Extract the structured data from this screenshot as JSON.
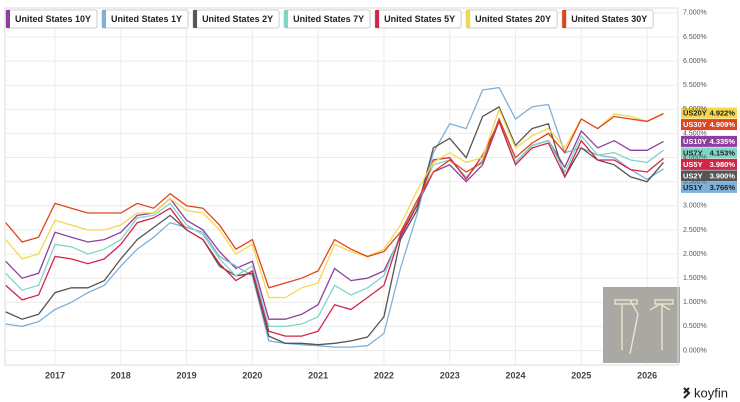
{
  "chart_data": {
    "type": "line",
    "brand": "koyfin",
    "x": [
      2016.25,
      2016.5,
      2016.75,
      2017,
      2017.25,
      2017.5,
      2017.75,
      2018,
      2018.25,
      2018.5,
      2018.75,
      2019,
      2019.25,
      2019.5,
      2019.75,
      2020,
      2020.25,
      2020.5,
      2020.75,
      2021,
      2021.25,
      2021.5,
      2021.75,
      2022,
      2022.25,
      2022.5,
      2022.75,
      2023,
      2023.25,
      2023.5,
      2023.75,
      2024,
      2024.25,
      2024.5,
      2024.75,
      2025,
      2025.25,
      2025.5,
      2025.75,
      2026,
      2026.25
    ],
    "xlim": [
      2016.24,
      2026.47
    ],
    "xticks": [
      2017,
      2018,
      2019,
      2020,
      2021,
      2022,
      2023,
      2024,
      2025,
      2026
    ],
    "ylim": [
      -0.3,
      7.1
    ],
    "yticks": [
      {
        "value": 0,
        "label": "0.000%"
      },
      {
        "value": 0.5,
        "label": "0.500%"
      },
      {
        "value": 1,
        "label": "1.000%"
      },
      {
        "value": 1.5,
        "label": "1.500%"
      },
      {
        "value": 2,
        "label": "2.000%"
      },
      {
        "value": 2.5,
        "label": "2.500%"
      },
      {
        "value": 3,
        "label": "3.000%"
      },
      {
        "value": 3.5,
        "label": "3.500%"
      },
      {
        "value": 4,
        "label": "4.000%"
      },
      {
        "value": 4.5,
        "label": "4.500%"
      },
      {
        "value": 5,
        "label": "5.000%"
      },
      {
        "value": 5.5,
        "label": "5.500%"
      },
      {
        "value": 6,
        "label": "6.000%"
      },
      {
        "value": 6.5,
        "label": "6.500%"
      },
      {
        "value": 7,
        "label": "7.000%"
      }
    ],
    "grid": true,
    "series": [
      {
        "name": "United States 10Y",
        "color": "#8e3f9e",
        "tag": "US10Y",
        "last": {
          "value": 4.335,
          "label": "4.335%"
        },
        "values": [
          1.85,
          1.5,
          1.6,
          2.45,
          2.35,
          2.25,
          2.3,
          2.45,
          2.8,
          2.85,
          3.15,
          2.7,
          2.5,
          2.05,
          1.7,
          1.85,
          0.65,
          0.65,
          0.75,
          0.95,
          1.7,
          1.45,
          1.5,
          1.65,
          2.35,
          3.0,
          3.7,
          3.85,
          3.5,
          3.85,
          4.75,
          3.9,
          4.25,
          4.35,
          3.8,
          4.55,
          4.2,
          4.35,
          4.15,
          4.15,
          4.335
        ]
      },
      {
        "name": "United States 1Y",
        "color": "#7fb0d8",
        "tag": "US1Y",
        "last": {
          "value": 3.766,
          "label": "3.766%"
        },
        "values": [
          0.55,
          0.5,
          0.6,
          0.85,
          1.0,
          1.2,
          1.35,
          1.75,
          2.1,
          2.35,
          2.65,
          2.55,
          2.45,
          1.95,
          1.75,
          1.55,
          0.2,
          0.15,
          0.12,
          0.1,
          0.07,
          0.07,
          0.1,
          0.35,
          1.7,
          2.8,
          4.1,
          4.7,
          4.6,
          5.4,
          5.45,
          4.8,
          5.05,
          5.1,
          4.1,
          4.2,
          4.05,
          4.0,
          3.75,
          3.55,
          3.766
        ]
      },
      {
        "name": "United States 2Y",
        "color": "#555555",
        "tag": "US2Y",
        "last": {
          "value": 3.9,
          "label": "3.900%"
        },
        "values": [
          0.8,
          0.65,
          0.75,
          1.2,
          1.3,
          1.3,
          1.45,
          1.9,
          2.3,
          2.55,
          2.8,
          2.5,
          2.3,
          1.75,
          1.55,
          1.6,
          0.3,
          0.15,
          0.15,
          0.12,
          0.15,
          0.2,
          0.28,
          0.7,
          2.3,
          2.9,
          4.2,
          4.4,
          4.0,
          4.85,
          5.05,
          4.25,
          4.6,
          4.7,
          3.6,
          4.2,
          3.95,
          3.85,
          3.6,
          3.5,
          3.9
        ]
      },
      {
        "name": "United States 7Y",
        "color": "#7fd6c6",
        "tag": "US7Y",
        "last": {
          "value": 4.153,
          "label": "4.153%"
        },
        "values": [
          1.6,
          1.25,
          1.35,
          2.2,
          2.15,
          2.0,
          2.1,
          2.3,
          2.75,
          2.8,
          3.05,
          2.6,
          2.4,
          1.9,
          1.55,
          1.75,
          0.5,
          0.5,
          0.55,
          0.7,
          1.35,
          1.15,
          1.3,
          1.55,
          2.4,
          3.05,
          3.85,
          3.95,
          3.6,
          3.95,
          4.8,
          3.9,
          4.25,
          4.35,
          3.7,
          4.45,
          4.05,
          4.1,
          3.95,
          3.9,
          4.153
        ]
      },
      {
        "name": "United States 5Y",
        "color": "#d42447",
        "tag": "US5Y",
        "last": {
          "value": 3.98,
          "label": "3.980%"
        },
        "values": [
          1.35,
          1.05,
          1.15,
          1.95,
          1.9,
          1.8,
          1.9,
          2.2,
          2.65,
          2.75,
          2.95,
          2.5,
          2.3,
          1.8,
          1.45,
          1.65,
          0.4,
          0.3,
          0.3,
          0.4,
          0.95,
          0.85,
          1.1,
          1.35,
          2.4,
          3.0,
          3.95,
          4.0,
          3.55,
          4.05,
          4.75,
          3.85,
          4.2,
          4.3,
          3.6,
          4.35,
          3.95,
          3.95,
          3.75,
          3.7,
          3.98
        ]
      },
      {
        "name": "United States 20Y",
        "color": "#f5d84a",
        "tag": "US20Y",
        "last": {
          "value": 4.922,
          "label": "4.922%"
        },
        "values": [
          2.3,
          1.9,
          2.0,
          2.7,
          2.6,
          2.5,
          2.5,
          2.6,
          2.85,
          2.85,
          3.15,
          2.9,
          2.85,
          2.5,
          2.0,
          2.2,
          1.1,
          1.1,
          1.3,
          1.4,
          2.2,
          2.05,
          1.95,
          2.1,
          2.6,
          3.3,
          3.9,
          4.1,
          3.9,
          4.0,
          5.0,
          4.2,
          4.45,
          4.6,
          4.2,
          4.8,
          4.6,
          4.9,
          4.85,
          4.75,
          4.922
        ]
      },
      {
        "name": "United States 30Y",
        "color": "#e0431f",
        "tag": "US30Y",
        "last": {
          "value": 4.909,
          "label": "4.909%"
        },
        "values": [
          2.65,
          2.25,
          2.35,
          3.05,
          2.95,
          2.85,
          2.85,
          2.85,
          3.05,
          2.95,
          3.25,
          3.0,
          2.95,
          2.6,
          2.1,
          2.3,
          1.3,
          1.4,
          1.5,
          1.65,
          2.3,
          2.1,
          1.95,
          2.05,
          2.45,
          3.1,
          3.7,
          3.95,
          3.7,
          3.9,
          4.8,
          4.0,
          4.3,
          4.5,
          4.1,
          4.8,
          4.6,
          4.85,
          4.8,
          4.75,
          4.909
        ]
      }
    ]
  }
}
